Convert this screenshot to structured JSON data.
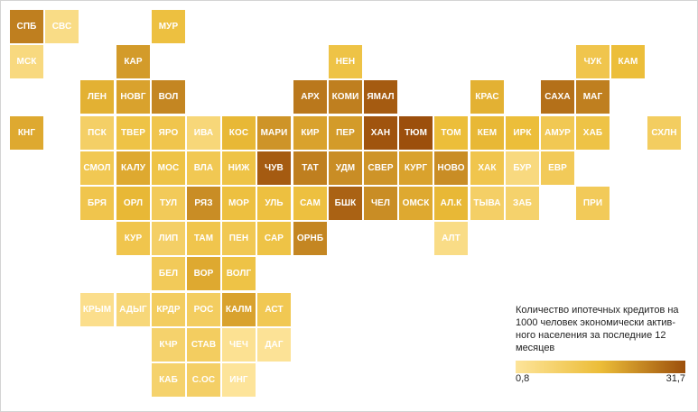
{
  "legend": {
    "title": "Количество ипотечных кредитов на 1000 человек экономически актив-ного населения за последние 12 месяцев",
    "min_label": "0,8",
    "max_label": "31,7",
    "min_value": 0.8,
    "max_value": 31.7,
    "color_low": "#fde49a",
    "color_mid": "#ecbd38",
    "color_high": "#9c4f0c"
  },
  "regions": [
    {
      "code": "СПБ",
      "row": 0,
      "col": 0,
      "value": 25
    },
    {
      "code": "СВС",
      "row": 0,
      "col": 1,
      "value": 4
    },
    {
      "code": "МУР",
      "row": 0,
      "col": 4,
      "value": 15
    },
    {
      "code": "НЕН",
      "row": 1,
      "col": 9,
      "value": 14
    },
    {
      "code": "ЧУК",
      "row": 1,
      "col": 16,
      "value": 13
    },
    {
      "code": "КАМ",
      "row": 1,
      "col": 17,
      "value": 16
    },
    {
      "code": "МСК",
      "row": 1,
      "col": 0,
      "value": 5
    },
    {
      "code": "КАР",
      "row": 1,
      "col": 3,
      "value": 21
    },
    {
      "code": "ЛЕН",
      "row": 2,
      "col": 2,
      "value": 18
    },
    {
      "code": "НОВГ",
      "row": 2,
      "col": 3,
      "value": 20
    },
    {
      "code": "ВОЛ",
      "row": 2,
      "col": 4,
      "value": 24
    },
    {
      "code": "АРХ",
      "row": 2,
      "col": 8,
      "value": 26
    },
    {
      "code": "КОМИ",
      "row": 2,
      "col": 9,
      "value": 25
    },
    {
      "code": "ЯМАЛ",
      "row": 2,
      "col": 10,
      "value": 30
    },
    {
      "code": "КРАС",
      "row": 2,
      "col": 13,
      "value": 18
    },
    {
      "code": "САХА",
      "row": 2,
      "col": 15,
      "value": 27
    },
    {
      "code": "МАГ",
      "row": 2,
      "col": 16,
      "value": 25
    },
    {
      "code": "КНГ",
      "row": 3,
      "col": 0,
      "value": 19
    },
    {
      "code": "ПСК",
      "row": 3,
      "col": 2,
      "value": 9
    },
    {
      "code": "ТВЕР",
      "row": 3,
      "col": 3,
      "value": 14
    },
    {
      "code": "ЯРО",
      "row": 3,
      "col": 4,
      "value": 13
    },
    {
      "code": "ИВА",
      "row": 3,
      "col": 5,
      "value": 6
    },
    {
      "code": "КОС",
      "row": 3,
      "col": 6,
      "value": 17
    },
    {
      "code": "МАРИ",
      "row": 3,
      "col": 7,
      "value": 22
    },
    {
      "code": "КИР",
      "row": 3,
      "col": 8,
      "value": 20
    },
    {
      "code": "ПЕР",
      "row": 3,
      "col": 9,
      "value": 21
    },
    {
      "code": "ХАН",
      "row": 3,
      "col": 10,
      "value": 31
    },
    {
      "code": "ТЮМ",
      "row": 3,
      "col": 11,
      "value": 31.7
    },
    {
      "code": "ТОМ",
      "row": 3,
      "col": 12,
      "value": 16
    },
    {
      "code": "КЕМ",
      "row": 3,
      "col": 13,
      "value": 17
    },
    {
      "code": "ИРК",
      "row": 3,
      "col": 14,
      "value": 16
    },
    {
      "code": "АМУР",
      "row": 3,
      "col": 15,
      "value": 12
    },
    {
      "code": "ХАБ",
      "row": 3,
      "col": 16,
      "value": 14
    },
    {
      "code": "СХЛН",
      "row": 3,
      "col": 18,
      "value": 10
    },
    {
      "code": "СМОЛ",
      "row": 4,
      "col": 2,
      "value": 12
    },
    {
      "code": "КАЛУ",
      "row": 4,
      "col": 3,
      "value": 19
    },
    {
      "code": "МОС",
      "row": 4,
      "col": 4,
      "value": 14
    },
    {
      "code": "ВЛА",
      "row": 4,
      "col": 5,
      "value": 12
    },
    {
      "code": "НИЖ",
      "row": 4,
      "col": 6,
      "value": 14
    },
    {
      "code": "ЧУВ",
      "row": 4,
      "col": 7,
      "value": 30
    },
    {
      "code": "ТАТ",
      "row": 4,
      "col": 8,
      "value": 25
    },
    {
      "code": "УДМ",
      "row": 4,
      "col": 9,
      "value": 23
    },
    {
      "code": "СВЕР",
      "row": 4,
      "col": 10,
      "value": 22
    },
    {
      "code": "КУРГ",
      "row": 4,
      "col": 11,
      "value": 20
    },
    {
      "code": "НОВО",
      "row": 4,
      "col": 12,
      "value": 23
    },
    {
      "code": "ХАК",
      "row": 4,
      "col": 13,
      "value": 13
    },
    {
      "code": "БУР",
      "row": 4,
      "col": 14,
      "value": 5
    },
    {
      "code": "ЕВР",
      "row": 4,
      "col": 15,
      "value": 11
    },
    {
      "code": "БРЯ",
      "row": 5,
      "col": 2,
      "value": 13
    },
    {
      "code": "ОРЛ",
      "row": 5,
      "col": 3,
      "value": 17
    },
    {
      "code": "ТУЛ",
      "row": 5,
      "col": 4,
      "value": 11
    },
    {
      "code": "РЯЗ",
      "row": 5,
      "col": 5,
      "value": 23
    },
    {
      "code": "МОР",
      "row": 5,
      "col": 6,
      "value": 15
    },
    {
      "code": "УЛЬ",
      "row": 5,
      "col": 7,
      "value": 15
    },
    {
      "code": "САМ",
      "row": 5,
      "col": 8,
      "value": 15
    },
    {
      "code": "БШК",
      "row": 5,
      "col": 9,
      "value": 29
    },
    {
      "code": "ЧЕЛ",
      "row": 5,
      "col": 10,
      "value": 23
    },
    {
      "code": "ОМСК",
      "row": 5,
      "col": 11,
      "value": 19
    },
    {
      "code": "АЛ.К",
      "row": 5,
      "col": 12,
      "value": 17
    },
    {
      "code": "ТЫВА",
      "row": 5,
      "col": 13,
      "value": 9
    },
    {
      "code": "ЗАБ",
      "row": 5,
      "col": 14,
      "value": 8
    },
    {
      "code": "ПРИ",
      "row": 5,
      "col": 16,
      "value": 11
    },
    {
      "code": "КУР",
      "row": 6,
      "col": 3,
      "value": 13
    },
    {
      "code": "ЛИП",
      "row": 6,
      "col": 4,
      "value": 9
    },
    {
      "code": "ТАМ",
      "row": 6,
      "col": 5,
      "value": 13
    },
    {
      "code": "ПЕН",
      "row": 6,
      "col": 6,
      "value": 12
    },
    {
      "code": "САР",
      "row": 6,
      "col": 7,
      "value": 14
    },
    {
      "code": "ОРНБ",
      "row": 6,
      "col": 8,
      "value": 24
    },
    {
      "code": "АЛТ",
      "row": 6,
      "col": 12,
      "value": 4
    },
    {
      "code": "БЕЛ",
      "row": 7,
      "col": 4,
      "value": 11
    },
    {
      "code": "ВОР",
      "row": 7,
      "col": 5,
      "value": 19
    },
    {
      "code": "ВОЛГ",
      "row": 7,
      "col": 6,
      "value": 14
    },
    {
      "code": "КРЫМ",
      "row": 8,
      "col": 2,
      "value": 3
    },
    {
      "code": "АДЫГ",
      "row": 8,
      "col": 3,
      "value": 6
    },
    {
      "code": "КРДР",
      "row": 8,
      "col": 4,
      "value": 10
    },
    {
      "code": "РОС",
      "row": 8,
      "col": 5,
      "value": 10
    },
    {
      "code": "КАЛМ",
      "row": 8,
      "col": 6,
      "value": 20
    },
    {
      "code": "АСТ",
      "row": 8,
      "col": 7,
      "value": 12
    },
    {
      "code": "КЧР",
      "row": 9,
      "col": 4,
      "value": 8
    },
    {
      "code": "СТАВ",
      "row": 9,
      "col": 5,
      "value": 10
    },
    {
      "code": "ЧЕЧ",
      "row": 9,
      "col": 6,
      "value": 2
    },
    {
      "code": "ДАГ",
      "row": 9,
      "col": 7,
      "value": 1.5
    },
    {
      "code": "КАБ",
      "row": 10,
      "col": 4,
      "value": 8
    },
    {
      "code": "С.ОС",
      "row": 10,
      "col": 5,
      "value": 9
    },
    {
      "code": "ИНГ",
      "row": 10,
      "col": 6,
      "value": 0.8
    }
  ]
}
